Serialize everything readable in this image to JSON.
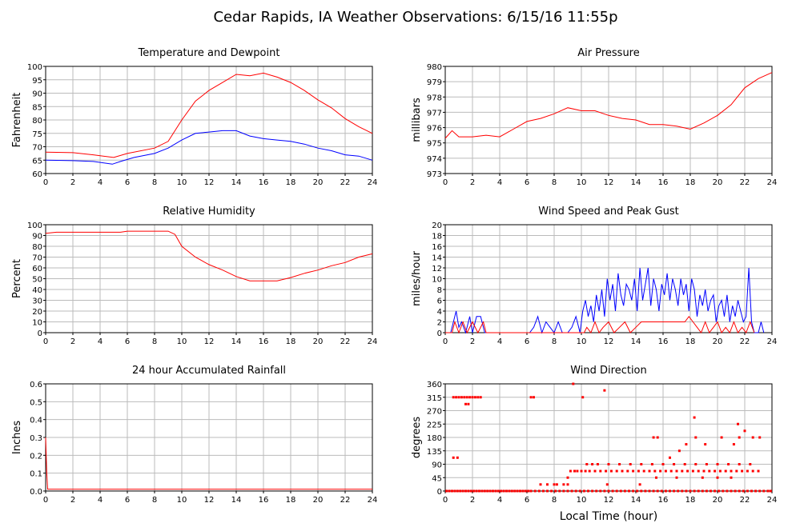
{
  "title": "Cedar Rapids, IA Weather Observations: 6/15/16 11:55p",
  "xlabel_bottom": "Local Time (hour)",
  "chart_data": [
    {
      "id": "temp",
      "type": "line",
      "title": "Temperature and Dewpoint",
      "ylabel": "Fahrenheit",
      "xlim": [
        0,
        24
      ],
      "ylim": [
        60,
        100
      ],
      "yticks": [
        60,
        65,
        70,
        75,
        80,
        85,
        90,
        95,
        100
      ],
      "xticks": [
        0,
        2,
        4,
        6,
        8,
        10,
        12,
        14,
        16,
        18,
        20,
        22,
        24
      ],
      "grid": true,
      "series": [
        {
          "color": "#ff0000",
          "x": [
            0,
            2,
            3.5,
            5,
            6,
            8,
            9,
            10,
            11,
            12,
            13,
            14,
            15,
            16,
            17,
            18,
            19,
            20,
            21,
            22,
            23,
            24
          ],
          "y": [
            68,
            67.8,
            67,
            66,
            67.5,
            69.5,
            72,
            80,
            87,
            91,
            94,
            97,
            96.5,
            97.5,
            96,
            94,
            91,
            87.5,
            84.5,
            80.5,
            77.5,
            75
          ]
        },
        {
          "color": "#0000ff",
          "x": [
            0,
            2,
            3.5,
            4.9,
            5.5,
            6.5,
            8,
            9,
            10,
            11,
            12,
            13,
            14,
            15,
            16,
            17,
            18,
            19,
            20,
            21,
            22,
            23,
            24
          ],
          "y": [
            65,
            64.8,
            64.5,
            63.5,
            64.5,
            66,
            67.5,
            69.5,
            72.5,
            75,
            75.5,
            76,
            76,
            74,
            73,
            72.5,
            72,
            71,
            69.5,
            68.5,
            67,
            66.5,
            65
          ]
        }
      ]
    },
    {
      "id": "pres",
      "type": "line",
      "title": "Air Pressure",
      "ylabel": "millibars",
      "xlim": [
        0,
        24
      ],
      "ylim": [
        973,
        980
      ],
      "yticks": [
        973,
        974,
        975,
        976,
        977,
        978,
        979,
        980
      ],
      "xticks": [
        0,
        2,
        4,
        6,
        8,
        10,
        12,
        14,
        16,
        18,
        20,
        22,
        24
      ],
      "grid": true,
      "series": [
        {
          "color": "#ff0000",
          "x": [
            0,
            0.5,
            1,
            2,
            3,
            4,
            5,
            6,
            7,
            8,
            9,
            10,
            11,
            12,
            13,
            14,
            15,
            16,
            17,
            18,
            19,
            20,
            21,
            22,
            23,
            24
          ],
          "y": [
            975.3,
            975.8,
            975.4,
            975.4,
            975.5,
            975.4,
            975.9,
            976.4,
            976.6,
            976.9,
            977.3,
            977.1,
            977.1,
            976.8,
            976.6,
            976.5,
            976.2,
            976.2,
            976.1,
            975.9,
            976.3,
            976.8,
            977.5,
            978.6,
            979.2,
            979.6
          ]
        }
      ]
    },
    {
      "id": "rh",
      "type": "line",
      "title": "Relative Humidity",
      "ylabel": "Percent",
      "xlim": [
        0,
        24
      ],
      "ylim": [
        0,
        100
      ],
      "yticks": [
        0,
        10,
        20,
        30,
        40,
        50,
        60,
        70,
        80,
        90,
        100
      ],
      "xticks": [
        0,
        2,
        4,
        6,
        8,
        10,
        12,
        14,
        16,
        18,
        20,
        22,
        24
      ],
      "grid": true,
      "series": [
        {
          "color": "#ff0000",
          "x": [
            0,
            0.8,
            2,
            4,
            5.5,
            6,
            7,
            8,
            9,
            9.5,
            10,
            11,
            12,
            13,
            14,
            15,
            16,
            17,
            18,
            19,
            20,
            21,
            22,
            23,
            24
          ],
          "y": [
            92,
            93,
            93,
            93,
            93,
            94,
            94,
            94,
            94,
            91,
            80,
            70,
            63,
            58,
            52,
            48,
            48,
            48,
            51,
            55,
            58,
            62,
            65,
            70,
            73
          ]
        }
      ]
    },
    {
      "id": "wind",
      "type": "line",
      "title": "Wind Speed and Peak Gust",
      "ylabel": "miles/hour",
      "xlim": [
        0,
        24
      ],
      "ylim": [
        0,
        20
      ],
      "yticks": [
        0,
        2,
        4,
        6,
        8,
        10,
        12,
        14,
        16,
        18,
        20
      ],
      "xticks": [
        0,
        2,
        4,
        6,
        8,
        10,
        12,
        14,
        16,
        18,
        20,
        22,
        24
      ],
      "grid": true,
      "series": [
        {
          "color": "#0000ff",
          "x": [
            0,
            0.4,
            0.6,
            0.8,
            1.0,
            1.2,
            1.5,
            1.8,
            2.0,
            2.3,
            2.6,
            2.9,
            3.2,
            6.2,
            6.5,
            6.8,
            7.1,
            7.4,
            7.7,
            8.0,
            8.3,
            8.6,
            9.0,
            9.3,
            9.6,
            9.9,
            10.1,
            10.3,
            10.5,
            10.7,
            10.9,
            11.1,
            11.3,
            11.5,
            11.7,
            11.9,
            12.1,
            12.3,
            12.5,
            12.7,
            12.9,
            13.1,
            13.3,
            13.5,
            13.7,
            13.9,
            14.1,
            14.3,
            14.5,
            14.7,
            14.9,
            15.1,
            15.3,
            15.5,
            15.7,
            15.9,
            16.1,
            16.3,
            16.5,
            16.7,
            16.9,
            17.1,
            17.3,
            17.5,
            17.7,
            17.9,
            18.1,
            18.3,
            18.5,
            18.7,
            18.9,
            19.1,
            19.3,
            19.5,
            19.7,
            19.9,
            20.1,
            20.3,
            20.5,
            20.7,
            20.9,
            21.1,
            21.3,
            21.5,
            21.7,
            21.9,
            22.1,
            22.3,
            22.5,
            22.7,
            23.0,
            23.2,
            23.4
          ],
          "y": [
            0,
            0,
            2,
            4,
            1,
            2,
            0,
            3,
            0,
            3,
            3,
            0,
            0,
            0,
            1,
            3,
            0,
            2,
            1,
            0,
            2,
            0,
            0,
            1,
            3,
            0,
            4,
            6,
            3,
            5,
            2,
            7,
            4,
            8,
            3,
            10,
            6,
            9,
            4,
            11,
            7,
            5,
            9,
            8,
            6,
            10,
            4,
            12,
            6,
            9,
            12,
            5,
            10,
            8,
            4,
            9,
            7,
            11,
            6,
            10,
            8,
            5,
            10,
            7,
            9,
            4,
            10,
            8,
            3,
            7,
            5,
            8,
            4,
            6,
            7,
            2,
            5,
            6,
            3,
            7,
            2,
            5,
            3,
            6,
            4,
            2,
            3,
            12,
            2,
            0,
            0,
            2,
            0
          ]
        },
        {
          "color": "#ff0000",
          "x": [
            0,
            0.5,
            0.7,
            1.0,
            1.3,
            1.6,
            2.0,
            2.4,
            2.8,
            3.0,
            10.2,
            10.4,
            10.7,
            11.0,
            11.3,
            11.6,
            12.0,
            12.4,
            12.8,
            13.2,
            13.6,
            14.0,
            14.4,
            14.8,
            15.2,
            15.6,
            16.0,
            16.4,
            16.8,
            17.2,
            17.6,
            17.9,
            18.2,
            18.5,
            18.8,
            19.1,
            19.4,
            19.7,
            20.0,
            20.3,
            20.6,
            20.9,
            21.2,
            21.5,
            21.8,
            22.1,
            22.4,
            22.7
          ],
          "y": [
            0,
            0,
            2,
            0,
            2,
            0,
            2,
            0,
            2,
            0,
            0,
            1,
            0,
            2,
            0,
            1,
            2,
            0,
            1,
            2,
            0,
            1,
            2,
            2,
            2,
            2,
            2,
            2,
            2,
            2,
            2,
            3,
            2,
            1,
            0,
            2,
            0,
            1,
            2,
            0,
            1,
            0,
            2,
            0,
            1,
            0,
            2,
            0
          ]
        }
      ]
    },
    {
      "id": "rain",
      "type": "line",
      "title": "24 hour Accumulated Rainfall",
      "ylabel": "Inches",
      "xlim": [
        0,
        24
      ],
      "ylim": [
        0,
        0.6
      ],
      "yticks": [
        0.0,
        0.1,
        0.2,
        0.3,
        0.4,
        0.5,
        0.6
      ],
      "ytick_labels": [
        "0.0",
        "0.1",
        "0.2",
        "0.3",
        "0.4",
        "0.5",
        "0.6"
      ],
      "xticks": [
        0,
        2,
        4,
        6,
        8,
        10,
        12,
        14,
        16,
        18,
        20,
        22,
        24
      ],
      "grid": true,
      "series": [
        {
          "color": "#ff0000",
          "x": [
            0,
            0.08,
            0.15,
            0.25,
            24
          ],
          "y": [
            0.3,
            0.1,
            0.01,
            0.01,
            0.01
          ]
        }
      ]
    },
    {
      "id": "dir",
      "type": "scatter",
      "title": "Wind Direction",
      "ylabel": "degrees",
      "xlim": [
        0,
        24
      ],
      "ylim": [
        0,
        360
      ],
      "yticks": [
        0,
        45,
        90,
        135,
        180,
        225,
        270,
        315,
        360
      ],
      "xticks": [
        0,
        2,
        4,
        6,
        8,
        10,
        12,
        14,
        16,
        18,
        20,
        22,
        24
      ],
      "grid": true,
      "series": [
        {
          "color": "#ff0000",
          "x": [
            0.1,
            0.3,
            0.5,
            0.7,
            0.9,
            1.1,
            1.3,
            1.5,
            1.7,
            1.9,
            2.1,
            2.3,
            2.5,
            2.7,
            2.9,
            3.1,
            3.3,
            3.5,
            3.7,
            3.9,
            4.1,
            4.3,
            4.5,
            4.7,
            4.9,
            5.1,
            5.3,
            5.5,
            5.7,
            5.9,
            6.1,
            6.3,
            6.6,
            6.9,
            7.2,
            7.5,
            7.8,
            8.1,
            8.4,
            8.7,
            9.0,
            9.3,
            9.6,
            9.9,
            10.2,
            10.5,
            10.8,
            11.1,
            11.4,
            11.7,
            12.0,
            12.3,
            12.6,
            12.9,
            13.2,
            13.5,
            13.8,
            14.1,
            14.4,
            14.7,
            15.0,
            15.3,
            15.6,
            15.9,
            16.2,
            16.5,
            16.8,
            17.1,
            17.4,
            17.7,
            18.0,
            18.3,
            18.6,
            18.9,
            19.2,
            19.5,
            19.8,
            20.1,
            20.4,
            20.7,
            21.0,
            21.3,
            21.6,
            21.9,
            22.2,
            22.5,
            22.8,
            23.1,
            23.4,
            23.7,
            23.9,
            0.6,
            0.8,
            1.0,
            1.2,
            1.4,
            1.6,
            1.8,
            2.0,
            2.2,
            2.4,
            2.6,
            6.3,
            6.5,
            9.4,
            10.1,
            11.7,
            0.6,
            0.9,
            7.0,
            7.5,
            8.0,
            8.7,
            9.0,
            9.2,
            9.5,
            9.7,
            10.0,
            10.3,
            10.6,
            11.0,
            11.4,
            11.8,
            12.2,
            12.6,
            13.0,
            13.4,
            13.8,
            14.2,
            14.6,
            15.0,
            15.4,
            15.8,
            16.2,
            16.6,
            17.0,
            17.4,
            17.8,
            18.2,
            18.6,
            19.0,
            19.4,
            19.8,
            20.2,
            20.6,
            21.0,
            21.4,
            21.8,
            22.2,
            22.6,
            23.0,
            10.4,
            10.8,
            11.2,
            12.0,
            12.8,
            13.6,
            14.4,
            15.2,
            16.0,
            16.8,
            17.6,
            18.4,
            19.2,
            20.0,
            20.8,
            21.6,
            22.4,
            15.3,
            15.6,
            16.5,
            17.2,
            17.7,
            18.4,
            19.1,
            20.3,
            21.2,
            21.6,
            22.0,
            22.6,
            23.1,
            18.3,
            21.5,
            1.5,
            1.7,
            11.9,
            8.2,
            9.0,
            14.3,
            15.5,
            17.0,
            18.9,
            20.0,
            21.0
          ],
          "y": [
            0,
            0,
            0,
            0,
            0,
            0,
            0,
            0,
            0,
            0,
            0,
            0,
            0,
            0,
            0,
            0,
            0,
            0,
            0,
            0,
            0,
            0,
            0,
            0,
            0,
            0,
            0,
            0,
            0,
            0,
            0,
            0,
            0,
            0,
            0,
            0,
            0,
            0,
            0,
            0,
            0,
            0,
            0,
            0,
            0,
            0,
            0,
            0,
            0,
            0,
            0,
            0,
            0,
            0,
            0,
            0,
            0,
            0,
            0,
            0,
            0,
            0,
            0,
            0,
            0,
            0,
            0,
            0,
            0,
            0,
            0,
            0,
            0,
            0,
            0,
            0,
            0,
            0,
            0,
            0,
            0,
            0,
            0,
            0,
            0,
            0,
            0,
            0,
            0,
            0,
            0,
            315,
            315,
            315,
            315,
            315,
            315,
            315,
            315,
            315,
            315,
            315,
            315,
            315,
            360,
            315,
            338,
            112,
            112,
            22,
            22,
            22,
            22,
            45,
            67,
            67,
            67,
            67,
            67,
            67,
            67,
            67,
            67,
            67,
            67,
            67,
            67,
            67,
            67,
            67,
            67,
            67,
            67,
            67,
            67,
            67,
            67,
            67,
            67,
            67,
            67,
            67,
            67,
            67,
            67,
            67,
            67,
            67,
            67,
            67,
            67,
            90,
            90,
            90,
            90,
            90,
            90,
            90,
            90,
            90,
            90,
            90,
            90,
            90,
            90,
            90,
            90,
            90,
            180,
            180,
            112,
            135,
            157,
            180,
            157,
            180,
            157,
            180,
            202,
            180,
            180,
            247,
            225,
            292,
            292,
            22,
            22,
            22,
            22,
            45,
            45,
            45,
            45,
            45
          ]
        }
      ]
    }
  ]
}
